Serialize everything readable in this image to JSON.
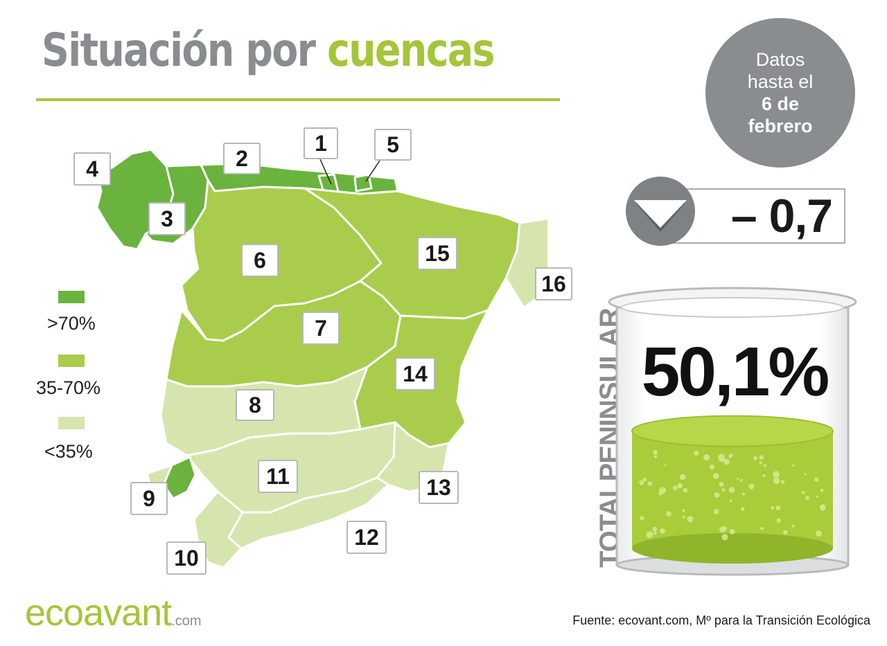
{
  "title": {
    "part1": "Situación por",
    "part2": "cuencas"
  },
  "date_badge": {
    "line1": "Datos",
    "line2": "hasta el",
    "line3": "6 de",
    "line4": "febrero"
  },
  "weekly_change": {
    "value": "– 0,7",
    "direction_icon": "down-triangle-icon"
  },
  "total": {
    "label": "TOTALPENINSULAR",
    "value": "50,1%",
    "fill_level": 0.501
  },
  "legend": [
    {
      "label": ">70%",
      "color": "#6ab33e"
    },
    {
      "label": "35-70%",
      "color": "#a9cc4c"
    },
    {
      "label": "<35%",
      "color": "#d6e5ad"
    }
  ],
  "basins": [
    "1",
    "2",
    "3",
    "4",
    "5",
    "6",
    "7",
    "8",
    "9",
    "10",
    "11",
    "12",
    "13",
    "14",
    "15",
    "16"
  ],
  "logo": {
    "name": "ecoavant",
    "domain": ".com"
  },
  "source": "Fuente: ecovant.com, Mº para la Transición Ecológica"
}
